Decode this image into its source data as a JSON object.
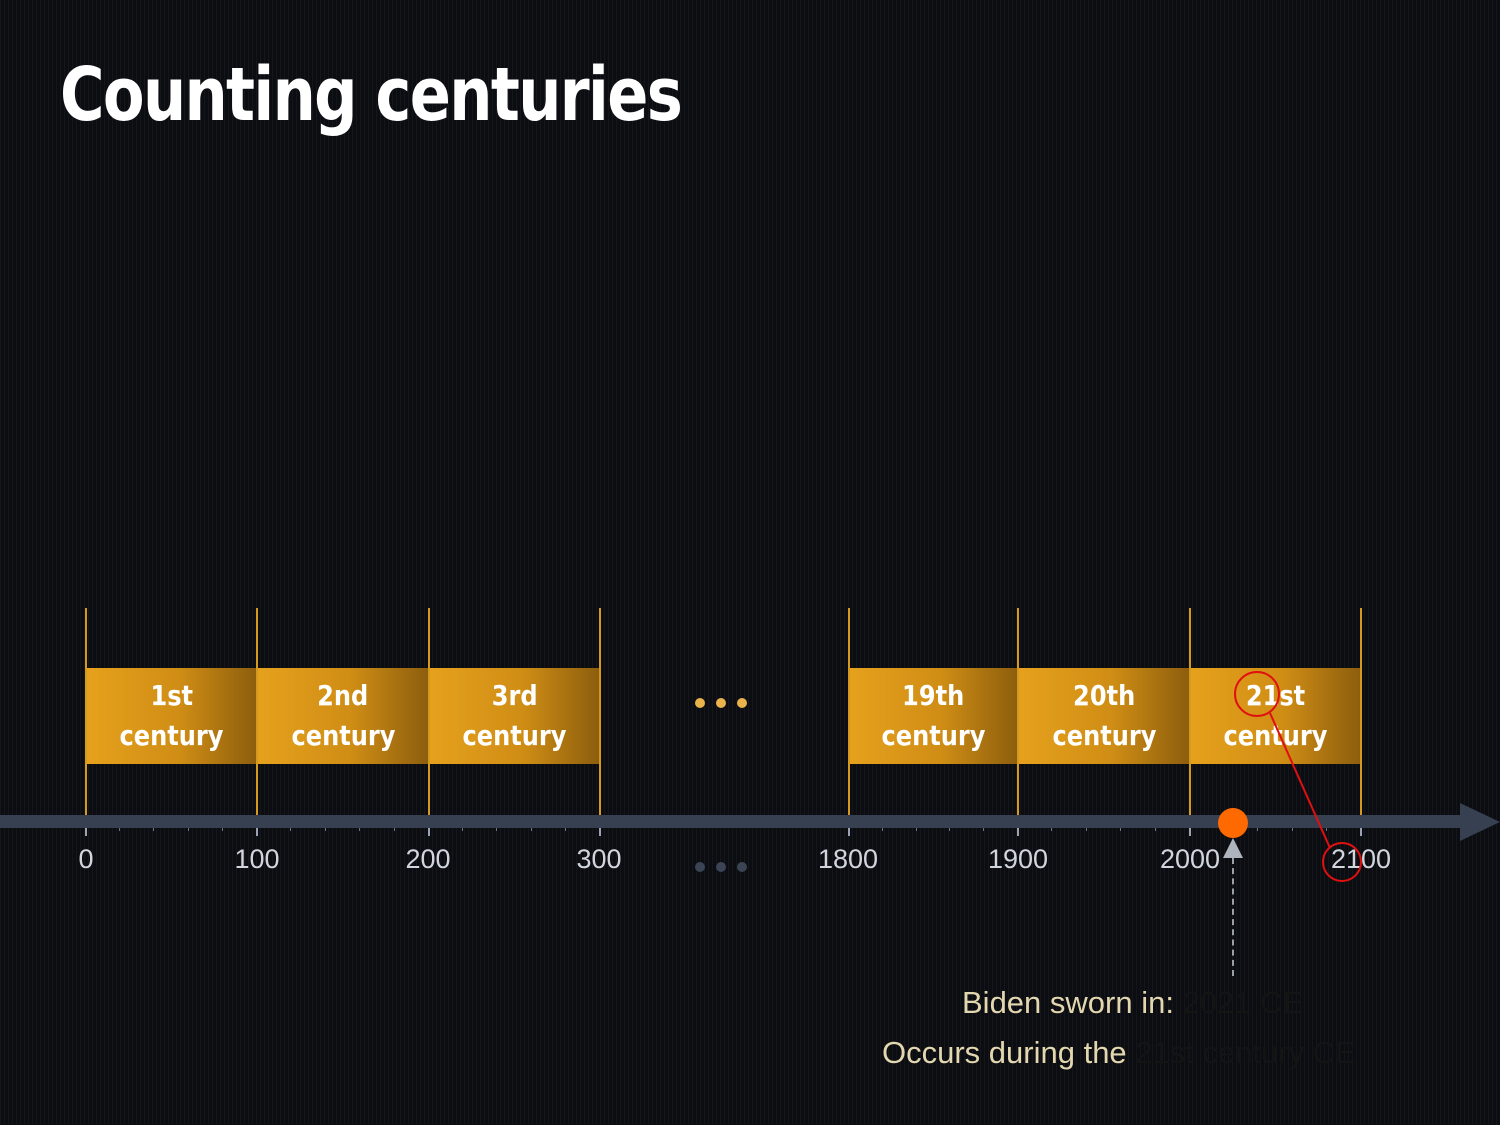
{
  "slide": {
    "title": "Counting centuries"
  },
  "centuries": [
    {
      "ordinal": "1st",
      "word": "century"
    },
    {
      "ordinal": "2nd",
      "word": "century"
    },
    {
      "ordinal": "3rd",
      "word": "century"
    },
    {
      "ordinal": "19th",
      "word": "century"
    },
    {
      "ordinal": "20th",
      "word": "century"
    },
    {
      "ordinal": "21st",
      "word": "century"
    }
  ],
  "ellipsis": "...",
  "axis": {
    "labels": [
      "0",
      "100",
      "200",
      "300",
      "1800",
      "1900",
      "2000",
      "2100"
    ],
    "minor_ticks_per_century": 4
  },
  "event": {
    "label": "Biden sworn in:",
    "year": "2021 CE",
    "during_label": "Occurs during the",
    "century": "21st century CE"
  },
  "colors": {
    "background": "#0c0d12",
    "block_gold": "#e6a11c",
    "axis": "#364050",
    "event_dot": "#ff6a00",
    "annotation": "#e01010",
    "caption": "#e3d7b0"
  }
}
